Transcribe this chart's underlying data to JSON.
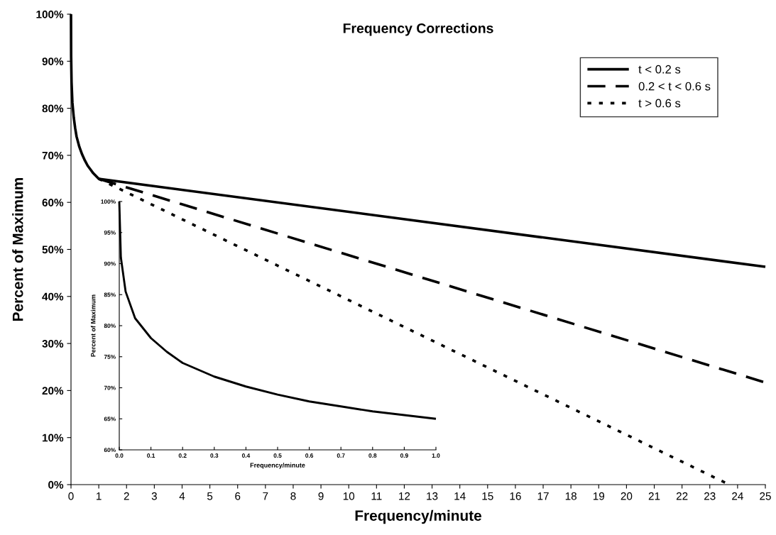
{
  "chart_data": [
    {
      "type": "line",
      "title": "Frequency Corrections",
      "xlabel": "Frequency/minute",
      "ylabel": "Percent of Maximum",
      "xlim": [
        0,
        25
      ],
      "xticks": [
        0,
        1,
        2,
        3,
        4,
        5,
        6,
        7,
        8,
        9,
        10,
        11,
        12,
        13,
        14,
        15,
        16,
        17,
        18,
        19,
        20,
        21,
        22,
        23,
        24,
        25
      ],
      "ylim": [
        0,
        100
      ],
      "yticks": [
        {
          "value": 0,
          "label": "0%"
        },
        {
          "value": 10,
          "label": "10%"
        },
        {
          "value": 20,
          "label": "20%"
        },
        {
          "value": 30,
          "label": "30%"
        },
        {
          "value": 40,
          "label": "40%"
        },
        {
          "value": 50,
          "label": "50%"
        },
        {
          "value": 60,
          "label": "60%"
        },
        {
          "value": 70,
          "label": "70%"
        },
        {
          "value": 80,
          "label": "80%"
        },
        {
          "value": 90,
          "label": "90%"
        },
        {
          "value": 100,
          "label": "100%"
        }
      ],
      "grid": false,
      "legend": "top right",
      "marker": "none",
      "series": [
        {
          "name": "t < 0.2 s",
          "color": "#000000",
          "line_style": "solid",
          "x": [
            0,
            0.005,
            0.02,
            0.05,
            0.1,
            0.15,
            0.2,
            0.3,
            0.4,
            0.5,
            0.6,
            0.7,
            0.8,
            0.9,
            1,
            25
          ],
          "values": [
            100,
            91,
            85.5,
            81.2,
            78,
            75.8,
            74,
            71.8,
            70.2,
            68.9,
            67.8,
            67,
            66.2,
            65.6,
            65,
            46.3
          ]
        },
        {
          "name": "0.2 < t < 0.6 s",
          "color": "#000000",
          "line_style": "dashed",
          "x": [
            1,
            25
          ],
          "values": [
            65,
            21.7
          ]
        },
        {
          "name": "t > 0.6 s",
          "color": "#000000",
          "line_style": "dotted",
          "x": [
            1,
            23.7
          ],
          "values": [
            65,
            0
          ]
        }
      ]
    },
    {
      "type": "line",
      "xlabel": "Frequency/minute",
      "ylabel": "Percent of Maximum",
      "xlim": [
        0,
        1
      ],
      "xticks": [
        {
          "value": 0,
          "label": "0.0"
        },
        {
          "value": 0.1,
          "label": "0.1"
        },
        {
          "value": 0.2,
          "label": "0.2"
        },
        {
          "value": 0.3,
          "label": "0.3"
        },
        {
          "value": 0.4,
          "label": "0.4"
        },
        {
          "value": 0.5,
          "label": "0.5"
        },
        {
          "value": 0.6,
          "label": "0.6"
        },
        {
          "value": 0.7,
          "label": "0.7"
        },
        {
          "value": 0.8,
          "label": "0.8"
        },
        {
          "value": 0.9,
          "label": "0.9"
        },
        {
          "value": 1,
          "label": "1.0"
        }
      ],
      "ylim": [
        60,
        100
      ],
      "yticks": [
        {
          "value": 60,
          "label": "60%"
        },
        {
          "value": 65,
          "label": "65%"
        },
        {
          "value": 70,
          "label": "70%"
        },
        {
          "value": 75,
          "label": "75%"
        },
        {
          "value": 80,
          "label": "80%"
        },
        {
          "value": 85,
          "label": "85%"
        },
        {
          "value": 90,
          "label": "90%"
        },
        {
          "value": 95,
          "label": "95%"
        },
        {
          "value": 100,
          "label": "100%"
        }
      ],
      "grid": false,
      "marker": "none",
      "series": [
        {
          "color": "#000000",
          "line_style": "solid",
          "x": [
            0,
            0.005,
            0.02,
            0.05,
            0.1,
            0.15,
            0.2,
            0.3,
            0.4,
            0.5,
            0.6,
            0.7,
            0.8,
            0.9,
            1
          ],
          "values": [
            100,
            91,
            85.5,
            81.2,
            78,
            75.8,
            74,
            71.8,
            70.2,
            68.9,
            67.8,
            67,
            66.2,
            65.6,
            65
          ]
        }
      ]
    }
  ]
}
